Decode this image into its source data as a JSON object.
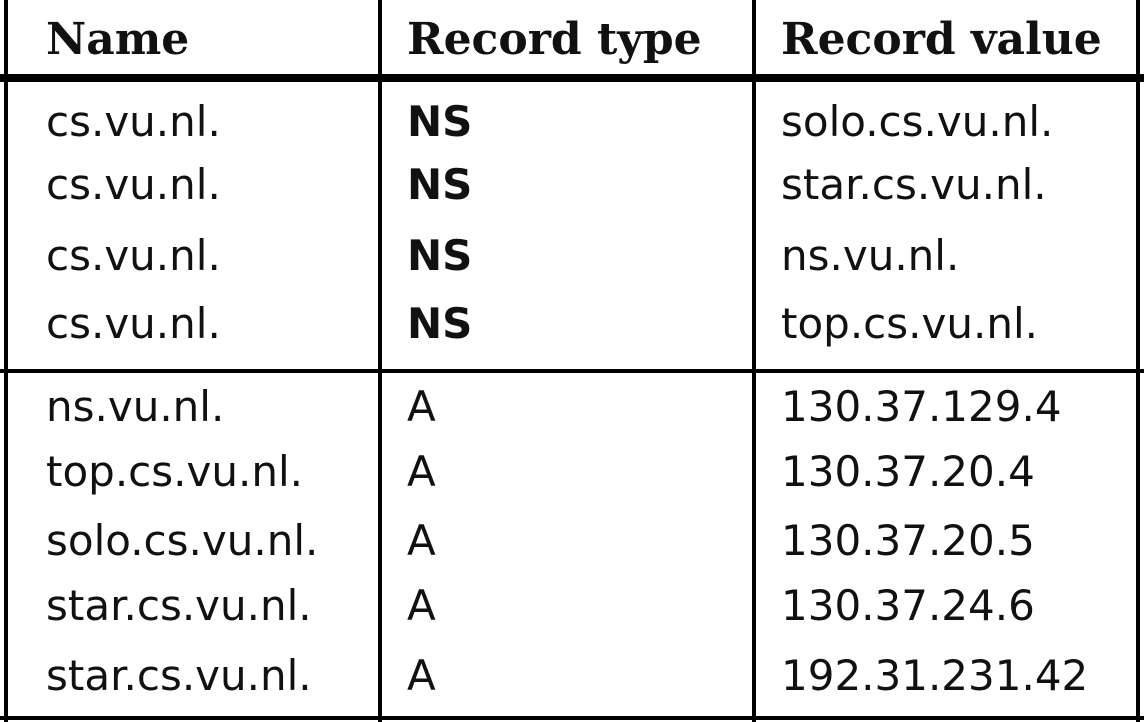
{
  "table": {
    "headers": {
      "name": "Name",
      "type": "Record type",
      "value": "Record value"
    },
    "groups": [
      {
        "rows": [
          {
            "name": "cs.vu.nl.",
            "type": "NS",
            "value": "solo.cs.vu.nl."
          },
          {
            "name": "cs.vu.nl.",
            "type": "NS",
            "value": "star.cs.vu.nl."
          },
          {
            "name": "cs.vu.nl.",
            "type": "NS",
            "value": "ns.vu.nl."
          },
          {
            "name": "cs.vu.nl.",
            "type": "NS",
            "value": "top.cs.vu.nl."
          }
        ]
      },
      {
        "rows": [
          {
            "name": "ns.vu.nl.",
            "type": "A",
            "value": "130.37.129.4"
          },
          {
            "name": "top.cs.vu.nl.",
            "type": "A",
            "value": "130.37.20.4"
          },
          {
            "name": "solo.cs.vu.nl.",
            "type": "A",
            "value": "130.37.20.5"
          },
          {
            "name": "star.cs.vu.nl.",
            "type": "A",
            "value": "130.37.24.6"
          },
          {
            "name": "star.cs.vu.nl.",
            "type": "A",
            "value": "192.31.231.42"
          }
        ]
      }
    ]
  }
}
